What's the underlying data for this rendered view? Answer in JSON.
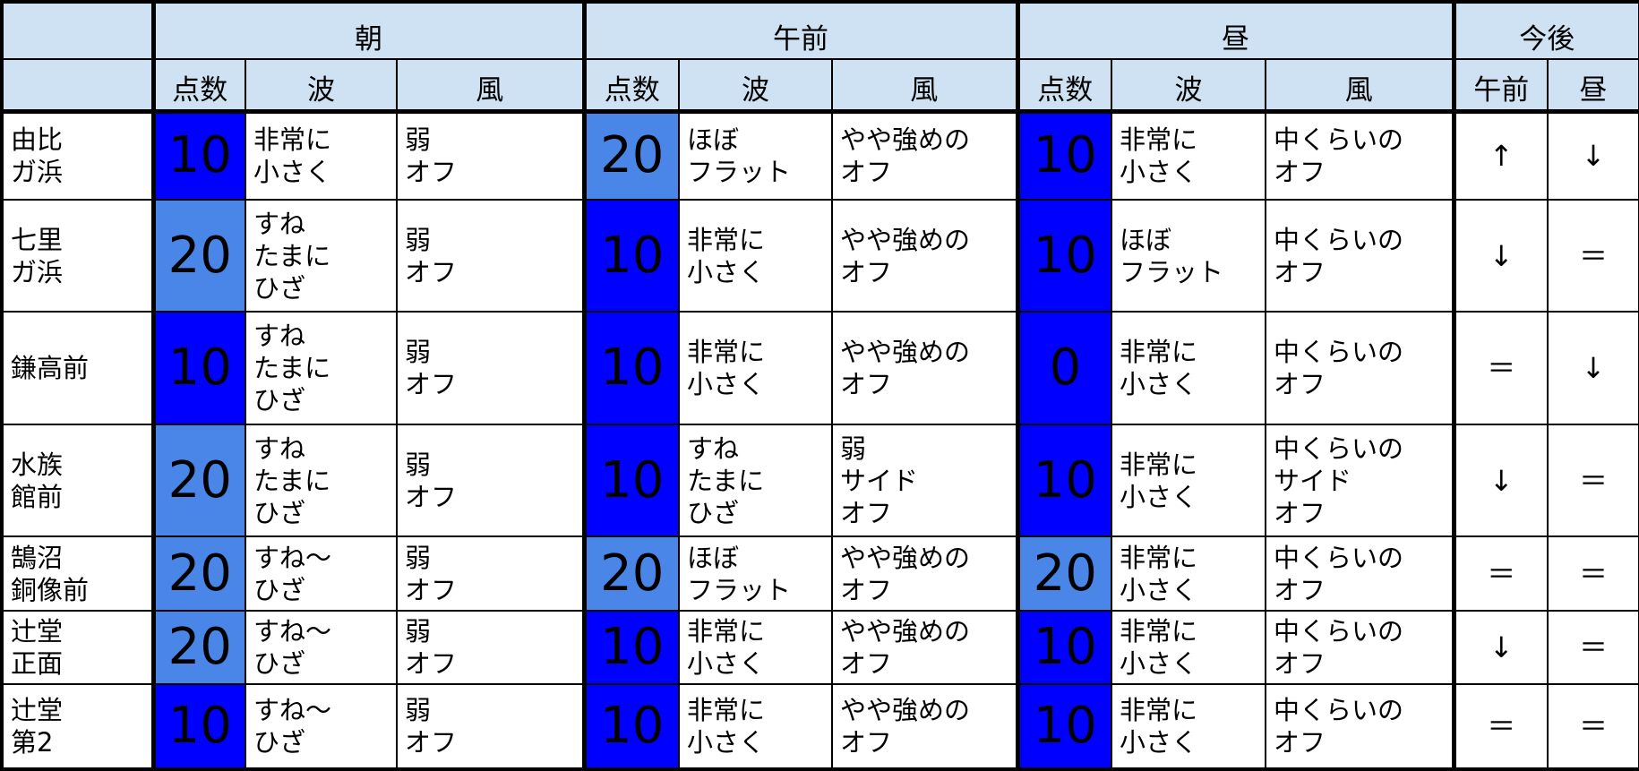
{
  "header": {
    "groups": [
      "朝",
      "午前",
      "昼",
      "今後"
    ],
    "sub": {
      "score": "点数",
      "wave": "波",
      "wind": "風"
    },
    "trend_sub": [
      "午前",
      "昼"
    ]
  },
  "score_colors": {
    "0": "#0000ff",
    "10": "#0000ff",
    "20": "#4a86e8"
  },
  "rows": [
    {
      "spot": "由比\nガ浜",
      "morning": {
        "score": "10",
        "wave": "非常に\n小さく",
        "wind": "弱\nオフ"
      },
      "am": {
        "score": "20",
        "wave": "ほぼ\nフラット",
        "wind": "やや強めの\nオフ"
      },
      "noon": {
        "score": "10",
        "wave": "非常に\n小さく",
        "wind": "中くらいの\nオフ"
      },
      "trend": [
        "↑",
        "↓"
      ]
    },
    {
      "spot": "七里\nガ浜",
      "morning": {
        "score": "20",
        "wave": "すね\nたまに\nひざ",
        "wind": "弱\nオフ"
      },
      "am": {
        "score": "10",
        "wave": "非常に\n小さく",
        "wind": "やや強めの\nオフ"
      },
      "noon": {
        "score": "10",
        "wave": "ほぼ\nフラット",
        "wind": "中くらいの\nオフ"
      },
      "trend": [
        "↓",
        "＝"
      ]
    },
    {
      "spot": "鎌高前",
      "morning": {
        "score": "10",
        "wave": "すね\nたまに\nひざ",
        "wind": "弱\nオフ"
      },
      "am": {
        "score": "10",
        "wave": "非常に\n小さく",
        "wind": "やや強めの\nオフ"
      },
      "noon": {
        "score": "0",
        "wave": "非常に\n小さく",
        "wind": "中くらいの\nオフ"
      },
      "trend": [
        "＝",
        "↓"
      ]
    },
    {
      "spot": "水族\n館前",
      "morning": {
        "score": "20",
        "wave": "すね\nたまに\nひざ",
        "wind": "弱\nオフ"
      },
      "am": {
        "score": "10",
        "wave": "すね\nたまに\nひざ",
        "wind": "弱\nサイド\nオフ"
      },
      "noon": {
        "score": "10",
        "wave": "非常に\n小さく",
        "wind": "中くらいの\nサイド\nオフ"
      },
      "trend": [
        "↓",
        "＝"
      ]
    },
    {
      "spot": "鵠沼\n銅像前",
      "morning": {
        "score": "20",
        "wave": "すね～\nひざ",
        "wind": "弱\nオフ"
      },
      "am": {
        "score": "20",
        "wave": "ほぼ\nフラット",
        "wind": "やや強めの\nオフ"
      },
      "noon": {
        "score": "20",
        "wave": "非常に\n小さく",
        "wind": "中くらいの\nオフ"
      },
      "trend": [
        "＝",
        "＝"
      ]
    },
    {
      "spot": "辻堂\n正面",
      "morning": {
        "score": "20",
        "wave": "すね～\nひざ",
        "wind": "弱\nオフ"
      },
      "am": {
        "score": "10",
        "wave": "非常に\n小さく",
        "wind": "やや強めの\nオフ"
      },
      "noon": {
        "score": "10",
        "wave": "非常に\n小さく",
        "wind": "中くらいの\nオフ"
      },
      "trend": [
        "↓",
        "＝"
      ]
    },
    {
      "spot": "辻堂\n第2",
      "morning": {
        "score": "10",
        "wave": "すね～\nひざ",
        "wind": "弱\nオフ"
      },
      "am": {
        "score": "10",
        "wave": "非常に\n小さく",
        "wind": "やや強めの\nオフ"
      },
      "noon": {
        "score": "10",
        "wave": "非常に\n小さく",
        "wind": "中くらいの\nオフ"
      },
      "trend": [
        "＝",
        "＝"
      ]
    }
  ]
}
